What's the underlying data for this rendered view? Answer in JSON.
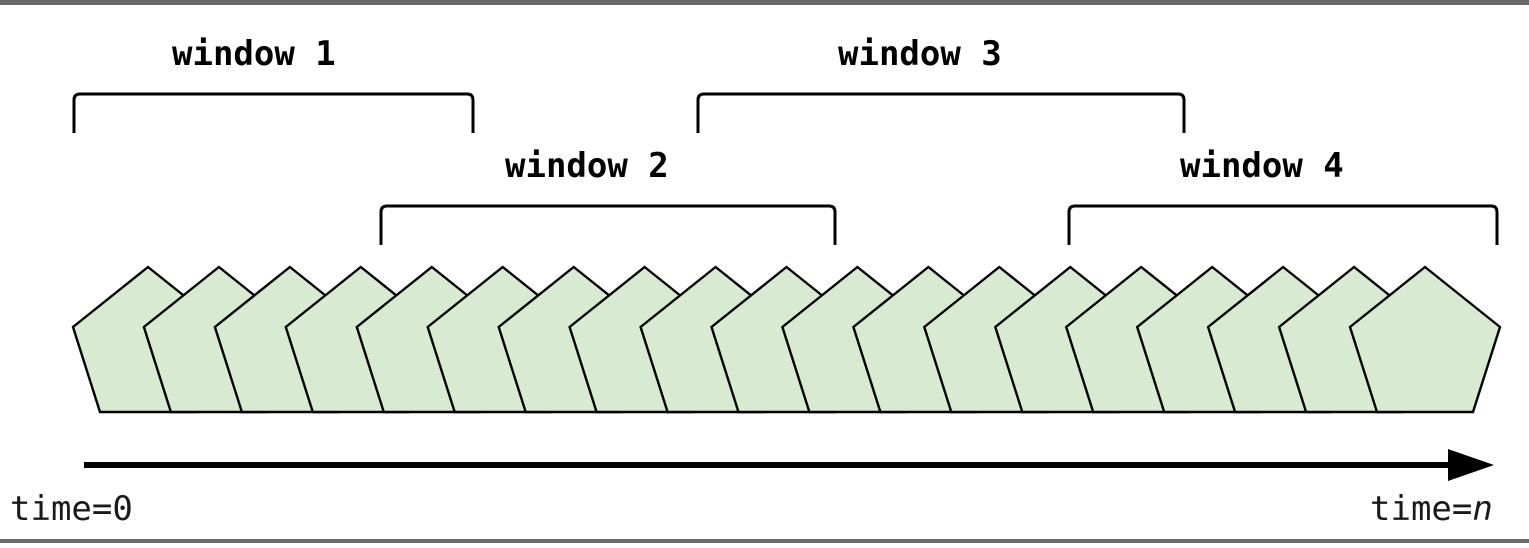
{
  "windows": [
    {
      "label": "window 1"
    },
    {
      "label": "window 2"
    },
    {
      "label": "window 3"
    },
    {
      "label": "window 4"
    }
  ],
  "timeline": {
    "start_label": "time=0",
    "end_label_prefix": "time=",
    "end_label_var": "n"
  },
  "events": {
    "count": 19,
    "fill_color": "#d9ead3",
    "stroke_color": "#000000"
  },
  "colors": {
    "border": "#6b6b6b",
    "ink": "#000000"
  }
}
